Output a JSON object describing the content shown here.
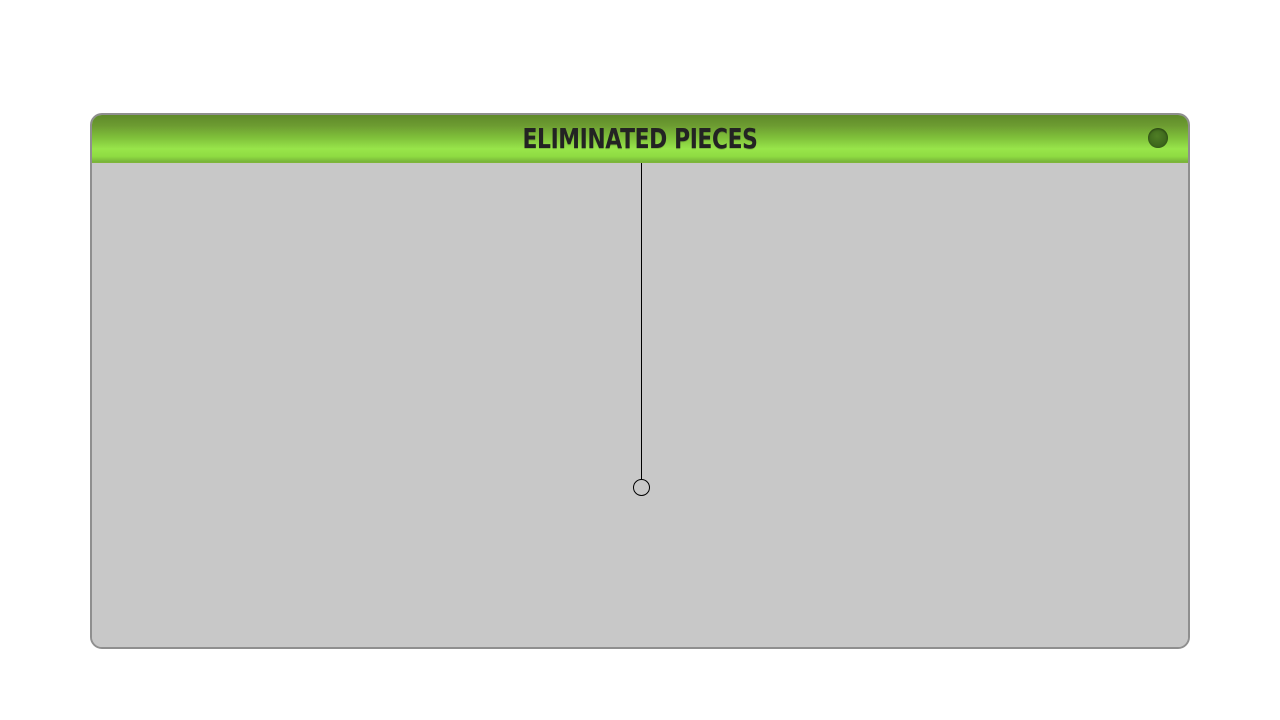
{
  "panel": {
    "title": "ELIMINATED PIECES",
    "close_icon": "close-icon",
    "colors": {
      "titlebar_accent": "#8fdc42",
      "panel_background": "#c8c8c8",
      "title_text": "#232323",
      "close_button": "#3f6a1d"
    }
  },
  "eliminated_pieces": []
}
